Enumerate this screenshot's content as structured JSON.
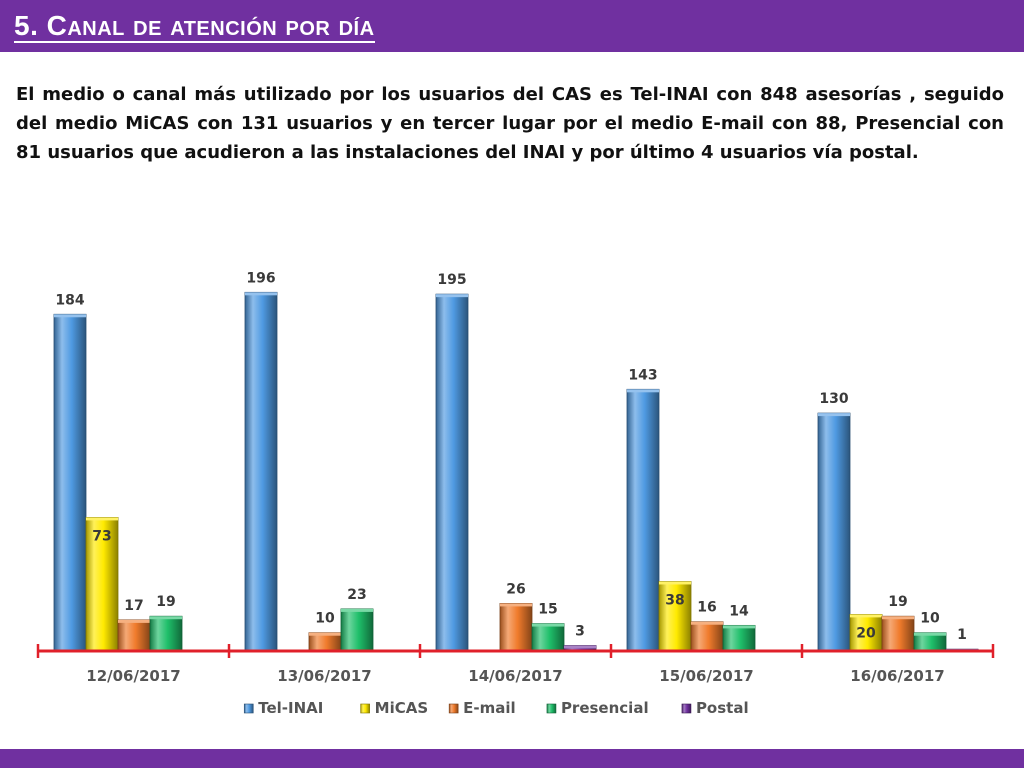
{
  "header": {
    "title": "5. Canal de atención por día"
  },
  "intro": {
    "text": "El medio o canal más utilizado por los usuarios del CAS es Tel-INAI con 848 asesorías , seguido del medio MiCAS con 131 usuarios y en tercer lugar por el medio E-mail con 88, Presencial con 81 usuarios que acudieron a las instalaciones del INAI y por último 4 usuarios vía postal."
  },
  "colors": {
    "header": "#7030a0",
    "axis": "#e0202a"
  },
  "chart_data": {
    "type": "bar",
    "categories": [
      "12/06/2017",
      "13/06/2017",
      "14/06/2017",
      "15/06/2017",
      "16/06/2017"
    ],
    "ylim": [
      0,
      200
    ],
    "legend_position": "bottom",
    "series": [
      {
        "name": "Tel-INAI",
        "color": "#4f9ae2",
        "values": [
          184,
          196,
          195,
          143,
          130
        ]
      },
      {
        "name": "MiCAS",
        "color": "#ffea00",
        "values": [
          73,
          null,
          null,
          38,
          20
        ]
      },
      {
        "name": "E-mail",
        "color": "#f07b2c",
        "values": [
          17,
          10,
          26,
          16,
          19
        ]
      },
      {
        "name": "Presencial",
        "color": "#1fbf6a",
        "values": [
          19,
          23,
          15,
          14,
          10
        ]
      },
      {
        "name": "Postal",
        "color": "#7030a0",
        "values": [
          null,
          null,
          3,
          null,
          1
        ]
      }
    ]
  }
}
